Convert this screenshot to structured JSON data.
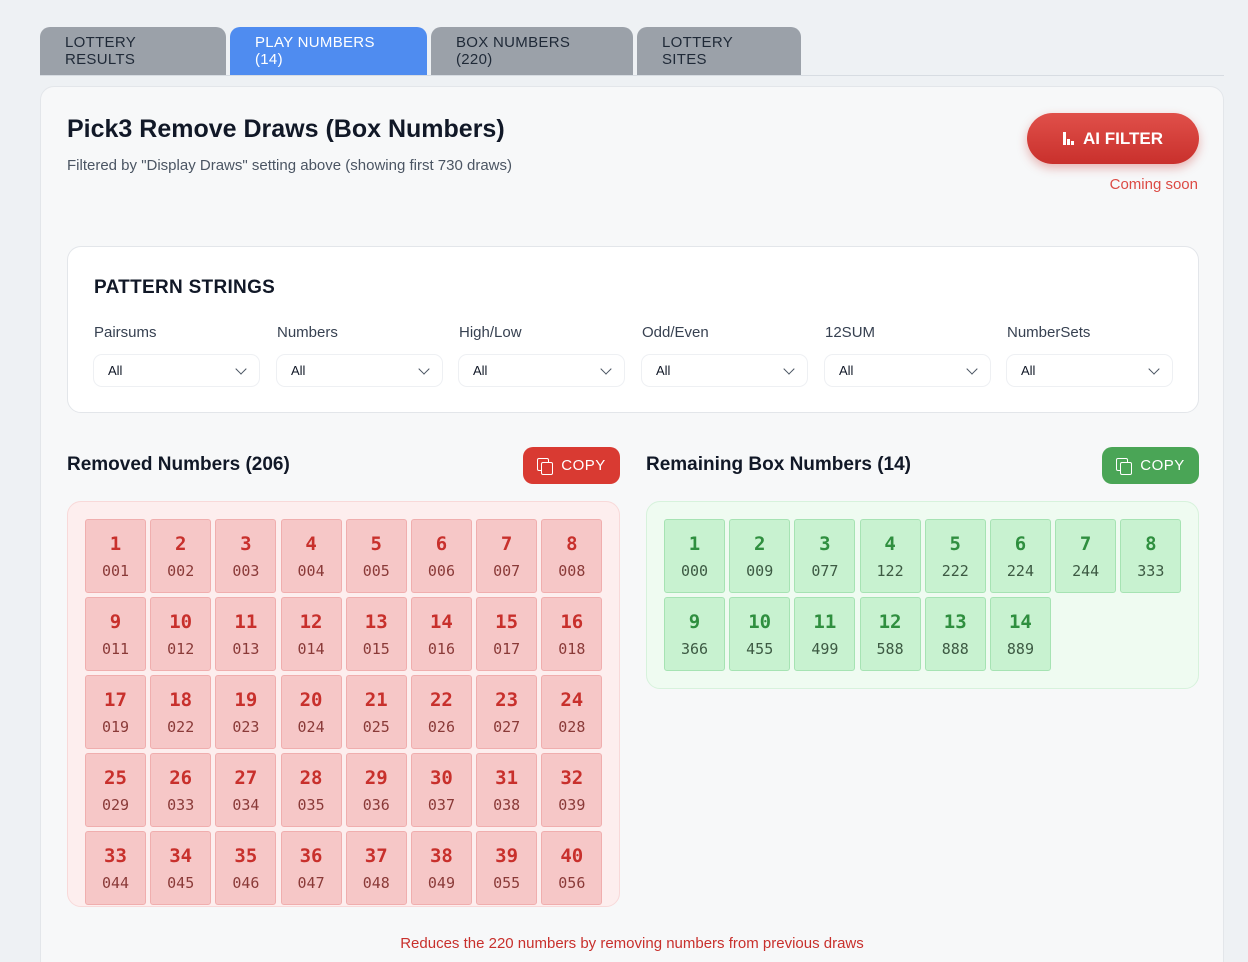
{
  "tabs": [
    {
      "label": "LOTTERY RESULTS",
      "active": false
    },
    {
      "label": "PLAY NUMBERS (14)",
      "active": true
    },
    {
      "label": "BOX NUMBERS (220)",
      "active": false
    },
    {
      "label": "LOTTERY SITES",
      "active": false
    }
  ],
  "header": {
    "title": "Pick3 Remove Draws (Box Numbers)",
    "subtitle": "Filtered by \"Display Draws\" setting above (showing first 730 draws)",
    "ai_filter_label": "AI FILTER",
    "coming_soon": "Coming soon"
  },
  "pattern": {
    "title": "PATTERN STRINGS",
    "filters": [
      {
        "label": "Pairsums",
        "value": "All"
      },
      {
        "label": "Numbers",
        "value": "All"
      },
      {
        "label": "High/Low",
        "value": "All"
      },
      {
        "label": "Odd/Even",
        "value": "All"
      },
      {
        "label": "12SUM",
        "value": "All"
      },
      {
        "label": "NumberSets",
        "value": "All"
      }
    ]
  },
  "removed": {
    "title": "Removed Numbers (206)",
    "copy_label": "COPY",
    "items": [
      {
        "i": "1",
        "n": "001"
      },
      {
        "i": "2",
        "n": "002"
      },
      {
        "i": "3",
        "n": "003"
      },
      {
        "i": "4",
        "n": "004"
      },
      {
        "i": "5",
        "n": "005"
      },
      {
        "i": "6",
        "n": "006"
      },
      {
        "i": "7",
        "n": "007"
      },
      {
        "i": "8",
        "n": "008"
      },
      {
        "i": "9",
        "n": "011"
      },
      {
        "i": "10",
        "n": "012"
      },
      {
        "i": "11",
        "n": "013"
      },
      {
        "i": "12",
        "n": "014"
      },
      {
        "i": "13",
        "n": "015"
      },
      {
        "i": "14",
        "n": "016"
      },
      {
        "i": "15",
        "n": "017"
      },
      {
        "i": "16",
        "n": "018"
      },
      {
        "i": "17",
        "n": "019"
      },
      {
        "i": "18",
        "n": "022"
      },
      {
        "i": "19",
        "n": "023"
      },
      {
        "i": "20",
        "n": "024"
      },
      {
        "i": "21",
        "n": "025"
      },
      {
        "i": "22",
        "n": "026"
      },
      {
        "i": "23",
        "n": "027"
      },
      {
        "i": "24",
        "n": "028"
      },
      {
        "i": "25",
        "n": "029"
      },
      {
        "i": "26",
        "n": "033"
      },
      {
        "i": "27",
        "n": "034"
      },
      {
        "i": "28",
        "n": "035"
      },
      {
        "i": "29",
        "n": "036"
      },
      {
        "i": "30",
        "n": "037"
      },
      {
        "i": "31",
        "n": "038"
      },
      {
        "i": "32",
        "n": "039"
      },
      {
        "i": "33",
        "n": "044"
      },
      {
        "i": "34",
        "n": "045"
      },
      {
        "i": "35",
        "n": "046"
      },
      {
        "i": "36",
        "n": "047"
      },
      {
        "i": "37",
        "n": "048"
      },
      {
        "i": "38",
        "n": "049"
      },
      {
        "i": "39",
        "n": "055"
      },
      {
        "i": "40",
        "n": "056"
      }
    ]
  },
  "remaining": {
    "title": "Remaining Box Numbers (14)",
    "copy_label": "COPY",
    "items": [
      {
        "i": "1",
        "n": "000"
      },
      {
        "i": "2",
        "n": "009"
      },
      {
        "i": "3",
        "n": "077"
      },
      {
        "i": "4",
        "n": "122"
      },
      {
        "i": "5",
        "n": "222"
      },
      {
        "i": "6",
        "n": "224"
      },
      {
        "i": "7",
        "n": "244"
      },
      {
        "i": "8",
        "n": "333"
      },
      {
        "i": "9",
        "n": "366"
      },
      {
        "i": "10",
        "n": "455"
      },
      {
        "i": "11",
        "n": "499"
      },
      {
        "i": "12",
        "n": "588"
      },
      {
        "i": "13",
        "n": "888"
      },
      {
        "i": "14",
        "n": "889"
      }
    ]
  },
  "footer": "Reduces the 220 numbers by removing numbers from previous draws",
  "colors": {
    "active_tab": "#4f8cf0",
    "ai_button": "#d93a32",
    "removed_accent": "#c8302c",
    "remaining_accent": "#4aa556"
  }
}
